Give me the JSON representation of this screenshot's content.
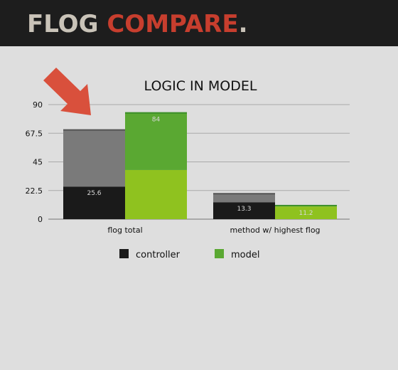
{
  "header": {
    "brand_word1": "FLOG",
    "brand_word2": "COMPARE",
    "brand_dot": "."
  },
  "colors": {
    "header_bg": "#1d1d1d",
    "brand_gray": "#c9c3b8",
    "brand_red": "#c73e2e",
    "arrow": "#d9503c",
    "controller": "#1a1a1a",
    "controller_upper": "#7a7a7a",
    "model": "#5aa832",
    "model_lower": "#8fc21f"
  },
  "chart_data": {
    "type": "bar",
    "title": "LOGIC IN MODEL",
    "categories": [
      "flog total",
      "method w/ highest flog"
    ],
    "ylim": [
      0,
      90
    ],
    "yticks": [
      "0",
      "22.5",
      "45",
      "67.5",
      "90"
    ],
    "grid": true,
    "legend_position": "bottom",
    "series": [
      {
        "name": "controller",
        "values": [
          70.6,
          20.5
        ],
        "segments": [
          [
            25.6,
            70.6
          ],
          [
            13.3,
            20.5
          ]
        ],
        "labels": [
          "25.6",
          "13.3"
        ]
      },
      {
        "name": "model",
        "values": [
          84,
          11.2
        ],
        "segments": [
          [
            38.6,
            84
          ],
          [
            10.0,
            11.2
          ]
        ],
        "labels": [
          "84",
          "11.2"
        ]
      }
    ]
  }
}
